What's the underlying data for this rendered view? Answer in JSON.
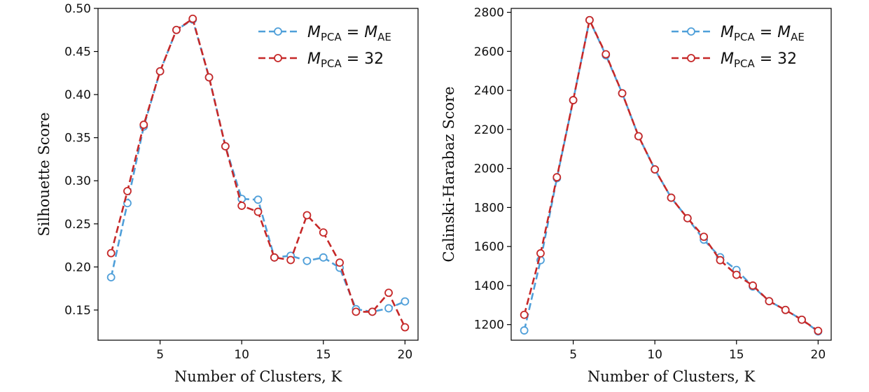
{
  "chart_data": [
    {
      "type": "line",
      "xlabel": "Number of Clusters, K",
      "ylabel": "Silhouette Score",
      "xlim": [
        1.2,
        20.8
      ],
      "ylim": [
        0.115,
        0.5
      ],
      "xticks": [
        5,
        10,
        15,
        20
      ],
      "yticks": [
        0.15,
        0.2,
        0.25,
        0.3,
        0.35,
        0.4,
        0.45,
        0.5
      ],
      "ytick_decimals": 2,
      "x": [
        2,
        3,
        4,
        5,
        6,
        7,
        8,
        9,
        10,
        11,
        12,
        13,
        14,
        15,
        16,
        17,
        18,
        19,
        20
      ],
      "legend_position": "top-right",
      "series": [
        {
          "name": "M_PCA = M_AE",
          "legend": {
            "m": "M",
            "sub1": "PCA",
            "eq": " = ",
            "m2": "M",
            "sub2": "AE"
          },
          "color": "#4f9fd9",
          "values": [
            0.188,
            0.274,
            0.363,
            0.427,
            0.475,
            0.487,
            0.42,
            0.34,
            0.279,
            0.278,
            0.211,
            0.213,
            0.207,
            0.211,
            0.199,
            0.151,
            0.148,
            0.152,
            0.16
          ]
        },
        {
          "name": "M_PCA = 32",
          "legend": {
            "m": "M",
            "sub1": "PCA",
            "eq": " = 32"
          },
          "color": "#c62828",
          "values": [
            0.216,
            0.288,
            0.365,
            0.427,
            0.475,
            0.488,
            0.42,
            0.34,
            0.271,
            0.264,
            0.211,
            0.208,
            0.26,
            0.24,
            0.205,
            0.148,
            0.148,
            0.17,
            0.13
          ]
        }
      ]
    },
    {
      "type": "line",
      "xlabel": "Number of Clusters, K",
      "ylabel": "Calinski-Harabaz Score",
      "xlim": [
        1.2,
        20.8
      ],
      "ylim": [
        1120,
        2820
      ],
      "xticks": [
        5,
        10,
        15,
        20
      ],
      "yticks": [
        1200,
        1400,
        1600,
        1800,
        2000,
        2200,
        2400,
        2600,
        2800
      ],
      "ytick_decimals": 0,
      "x": [
        2,
        3,
        4,
        5,
        6,
        7,
        8,
        9,
        10,
        11,
        12,
        13,
        14,
        15,
        16,
        17,
        18,
        19,
        20
      ],
      "legend_position": "top-right",
      "series": [
        {
          "name": "M_PCA = M_AE",
          "legend": {
            "m": "M",
            "sub1": "PCA",
            "eq": " = ",
            "m2": "M",
            "sub2": "AE"
          },
          "color": "#4f9fd9",
          "values": [
            1170,
            1530,
            1950,
            2350,
            2760,
            2580,
            2385,
            2165,
            1995,
            1850,
            1745,
            1635,
            1545,
            1480,
            1395,
            1320,
            1275,
            1225,
            1165
          ]
        },
        {
          "name": "M_PCA = 32",
          "legend": {
            "m": "M",
            "sub1": "PCA",
            "eq": " = 32"
          },
          "color": "#c62828",
          "values": [
            1250,
            1565,
            1955,
            2350,
            2760,
            2585,
            2385,
            2165,
            1995,
            1850,
            1745,
            1650,
            1530,
            1455,
            1400,
            1320,
            1275,
            1225,
            1168
          ]
        }
      ]
    }
  ]
}
